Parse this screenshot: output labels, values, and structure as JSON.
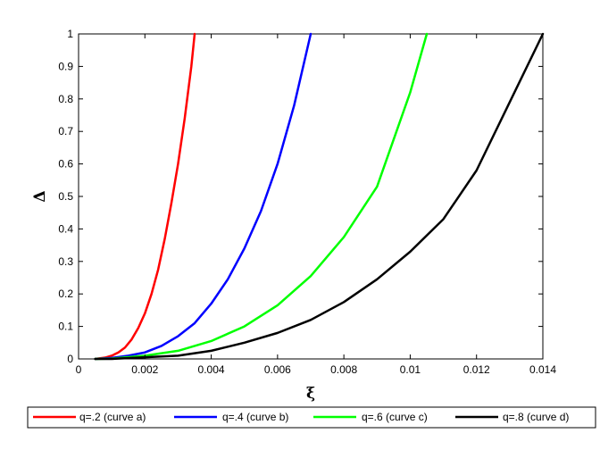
{
  "chart_data": {
    "type": "line",
    "title": "",
    "xlabel": "ξ",
    "ylabel": "Δ",
    "xlim": [
      0,
      0.014
    ],
    "ylim": [
      0,
      1
    ],
    "xticks": [
      0,
      0.002,
      0.004,
      0.006,
      0.008,
      0.01,
      0.012,
      0.014
    ],
    "xtick_labels": [
      "0",
      "0.002",
      "0.004",
      "0.006",
      "0.008",
      "0.01",
      "0.012",
      "0.014"
    ],
    "yticks": [
      0,
      0.1,
      0.2,
      0.3,
      0.4,
      0.5,
      0.6,
      0.7,
      0.8,
      0.9,
      1
    ],
    "ytick_labels": [
      "0",
      "0.1",
      "0.2",
      "0.3",
      "0.4",
      "0.5",
      "0.6",
      "0.7",
      "0.8",
      "0.9",
      "1"
    ],
    "grid": false,
    "legend_position": "bottom",
    "series": [
      {
        "name": "q=.2 (curve a)",
        "color": "#ff0000",
        "x": [
          0.0005,
          0.0008,
          0.001,
          0.0012,
          0.0014,
          0.0016,
          0.0018,
          0.002,
          0.0022,
          0.0024,
          0.0026,
          0.0028,
          0.003,
          0.0032,
          0.0034,
          0.0035
        ],
        "y": [
          0.0,
          0.004,
          0.01,
          0.02,
          0.035,
          0.06,
          0.095,
          0.14,
          0.2,
          0.275,
          0.37,
          0.48,
          0.6,
          0.74,
          0.9,
          1.0
        ]
      },
      {
        "name": "q=.4 (curve b)",
        "color": "#0000ff",
        "x": [
          0.0005,
          0.001,
          0.0015,
          0.002,
          0.0025,
          0.003,
          0.0035,
          0.004,
          0.0045,
          0.005,
          0.0055,
          0.006,
          0.0065,
          0.007
        ],
        "y": [
          0.0,
          0.003,
          0.01,
          0.02,
          0.04,
          0.07,
          0.11,
          0.17,
          0.245,
          0.34,
          0.455,
          0.6,
          0.78,
          1.0
        ]
      },
      {
        "name": "q=.6 (curve c)",
        "color": "#00ff00",
        "x": [
          0.0005,
          0.001,
          0.002,
          0.003,
          0.004,
          0.005,
          0.006,
          0.007,
          0.008,
          0.009,
          0.01,
          0.0105
        ],
        "y": [
          0.0,
          0.001,
          0.01,
          0.025,
          0.055,
          0.1,
          0.165,
          0.255,
          0.375,
          0.53,
          0.82,
          1.0
        ]
      },
      {
        "name": "q=.8 (curve d)",
        "color": "#000000",
        "x": [
          0.0005,
          0.001,
          0.002,
          0.003,
          0.004,
          0.005,
          0.006,
          0.007,
          0.008,
          0.009,
          0.01,
          0.011,
          0.012,
          0.013,
          0.014
        ],
        "y": [
          0.0,
          0.0,
          0.005,
          0.01,
          0.025,
          0.05,
          0.08,
          0.12,
          0.175,
          0.245,
          0.33,
          0.43,
          0.58,
          0.79,
          1.0
        ]
      }
    ]
  }
}
